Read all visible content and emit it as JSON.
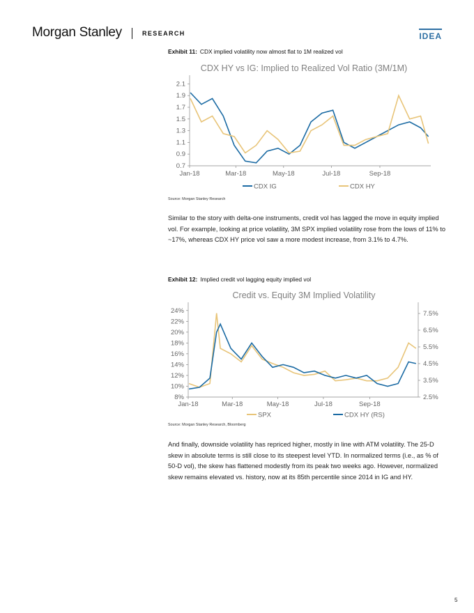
{
  "header": {
    "logo": "Morgan Stanley",
    "research": "RESEARCH",
    "tag": "IDEA"
  },
  "exhibit11": {
    "label": "Exhibit 11:",
    "caption": "CDX implied volatility now almost flat to 1M realized vol",
    "source": "Source: Morgan Stanley Research"
  },
  "paragraph1": "Similar to the story with delta-one instruments, credit vol has lagged the move in equity implied vol. For example, looking at price volatility, 3M SPX implied volatility rose from the lows of 11% to ~17%, whereas CDX HY price vol saw a more modest increase, from 3.1% to 4.7%.",
  "exhibit12": {
    "label": "Exhibit 12:",
    "caption": "Implied credit vol lagging equity implied vol",
    "source": "Source: Morgan Stanley Research, Bloomberg"
  },
  "paragraph2": "And finally, downside volatility has repriced higher, mostly in line with ATM volatility. The 25-D skew in absolute terms is still close to its steepest level YTD. In normalized terms (i.e., as % of 50-D vol), the skew has flattened modestly from its peak two weeks ago. However, normalized skew remains elevated vs. history, now at its 85th percentile since 2014 in IG and HY.",
  "page_number": "5",
  "colors": {
    "ig": "#1a6aa3",
    "hy": "#e8c478",
    "spx": "#e8c478",
    "cdxhy": "#1a6aa3",
    "axis": "#666666",
    "title": "#7f7f7f",
    "accent": "#2c6ea3"
  },
  "chart_data": [
    {
      "type": "line",
      "title": "CDX HY vs IG: Implied to Realized Vol Ratio (3M/1M)",
      "xlabel": "",
      "ylabel": "",
      "x_tick_labels": [
        "Jan-18",
        "Mar-18",
        "May-18",
        "Jul-18",
        "Sep-18"
      ],
      "y_ticks": [
        "0.7",
        "0.9",
        "1.1",
        "1.3",
        "1.5",
        "1.7",
        "1.9",
        "2.1"
      ],
      "ylim": [
        0.7,
        2.2
      ],
      "legend_position": "bottom",
      "x": [
        "2018-01-02",
        "2018-01-16",
        "2018-01-30",
        "2018-02-13",
        "2018-02-27",
        "2018-03-13",
        "2018-03-27",
        "2018-04-10",
        "2018-04-24",
        "2018-05-08",
        "2018-05-22",
        "2018-06-05",
        "2018-06-19",
        "2018-07-03",
        "2018-07-17",
        "2018-07-31",
        "2018-08-14",
        "2018-08-28",
        "2018-09-11",
        "2018-09-25",
        "2018-10-09",
        "2018-10-23",
        "2018-11-02"
      ],
      "series": [
        {
          "name": "CDX IG",
          "values": [
            1.95,
            1.75,
            1.85,
            1.55,
            1.05,
            0.78,
            0.75,
            0.95,
            1.0,
            0.9,
            1.05,
            1.45,
            1.6,
            1.65,
            1.1,
            1.0,
            1.1,
            1.2,
            1.3,
            1.4,
            1.45,
            1.35,
            1.2
          ]
        },
        {
          "name": "CDX HY",
          "values": [
            1.85,
            1.45,
            1.55,
            1.25,
            1.2,
            0.92,
            1.05,
            1.3,
            1.15,
            0.92,
            0.95,
            1.3,
            1.4,
            1.55,
            1.05,
            1.05,
            1.15,
            1.2,
            1.25,
            1.9,
            1.5,
            1.55,
            1.08
          ]
        }
      ]
    },
    {
      "type": "line",
      "title": "Credit vs. Equity 3M Implied Volatility",
      "xlabel": "",
      "ylabel": "",
      "x_tick_labels": [
        "Jan-18",
        "Mar-18",
        "May-18",
        "Jul-18",
        "Sep-18"
      ],
      "y_ticks_left": [
        "8%",
        "10%",
        "12%",
        "14%",
        "16%",
        "18%",
        "20%",
        "22%",
        "24%"
      ],
      "y_ticks_right": [
        "2.5%",
        "3.5%",
        "4.5%",
        "5.5%",
        "6.5%",
        "7.5%"
      ],
      "ylim_left": [
        8,
        25
      ],
      "ylim_right": [
        2.5,
        8.0
      ],
      "legend_position": "bottom",
      "x": [
        "2018-01-02",
        "2018-01-16",
        "2018-01-30",
        "2018-02-08",
        "2018-02-13",
        "2018-02-27",
        "2018-03-13",
        "2018-03-27",
        "2018-04-10",
        "2018-04-24",
        "2018-05-08",
        "2018-05-22",
        "2018-06-05",
        "2018-06-19",
        "2018-07-03",
        "2018-07-17",
        "2018-07-31",
        "2018-08-14",
        "2018-08-28",
        "2018-09-11",
        "2018-09-25",
        "2018-10-09",
        "2018-10-23",
        "2018-11-02"
      ],
      "series": [
        {
          "name": "SPX",
          "axis": "left",
          "values": [
            10.5,
            9.8,
            10.5,
            23.5,
            17.0,
            16.0,
            14.5,
            17.5,
            15.0,
            14.2,
            13.5,
            12.5,
            12.0,
            12.2,
            12.8,
            11.0,
            11.2,
            11.5,
            11.0,
            11.0,
            11.5,
            13.5,
            18.0,
            17.0
          ]
        },
        {
          "name": "CDX HY (RS)",
          "axis": "left",
          "values": [
            9.5,
            9.8,
            11.5,
            20.0,
            21.5,
            17.0,
            15.0,
            18.0,
            15.5,
            13.5,
            14.0,
            13.5,
            12.5,
            12.8,
            12.0,
            11.5,
            12.0,
            11.5,
            12.0,
            10.5,
            10.0,
            10.5,
            14.5,
            14.2
          ]
        }
      ]
    }
  ]
}
